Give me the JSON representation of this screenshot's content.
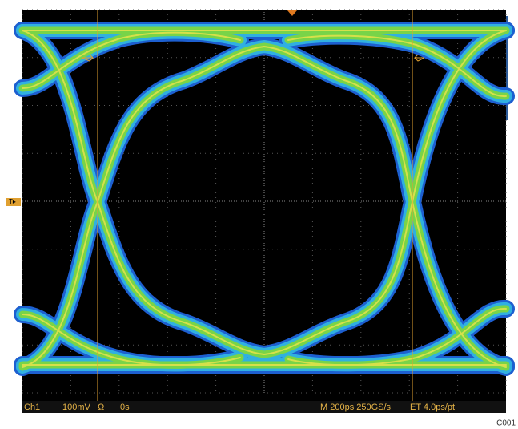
{
  "status_bar": {
    "channel": "Ch1",
    "scale": "100mV",
    "coupling": "Ω",
    "position": "0s",
    "horizontal": "M 200ps 250GS/s",
    "sampling": "ET 4.0ps/pt"
  },
  "figure_id": "C001"
}
